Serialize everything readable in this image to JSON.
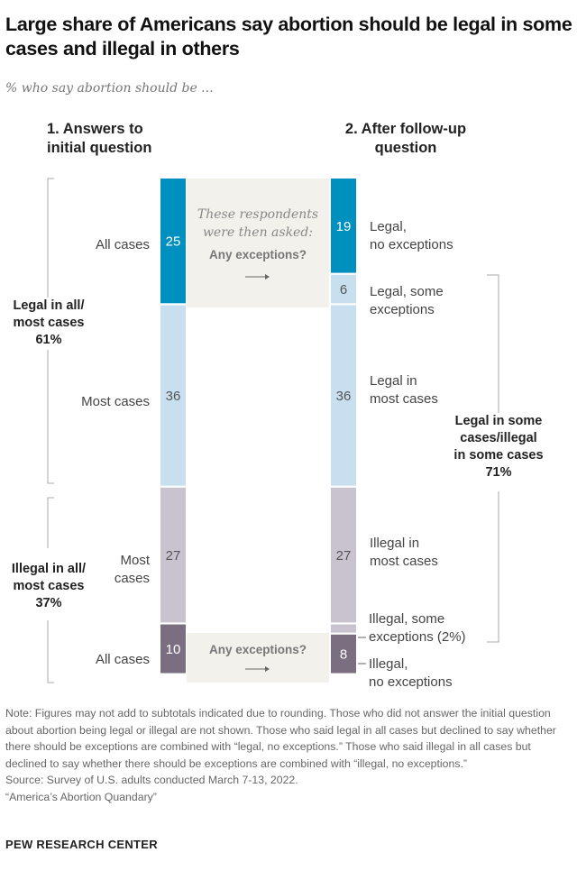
{
  "title": "Large share of Americans say abortion should be legal in some cases and illegal in others",
  "subtitle": "% who say abortion should be ...",
  "chart_data": {
    "type": "bar",
    "subtype": "stacked-column-flow",
    "columns": [
      {
        "header": "1. Answers to initial question",
        "segments": [
          {
            "label": "All cases",
            "value": 25,
            "color": "#0090bf",
            "show_value": true
          },
          {
            "label": "Most cases",
            "value": 36,
            "color": "#c7dfee",
            "show_value": true
          },
          {
            "label": "Most cases",
            "value": 27,
            "color": "#c8c3cf",
            "show_value": true
          },
          {
            "label": "All cases",
            "value": 10,
            "color": "#7b6e80",
            "show_value": true
          }
        ]
      },
      {
        "header": "2. After follow-up question",
        "segments": [
          {
            "label": "Legal, no exceptions",
            "value": 19,
            "color": "#0090bf",
            "show_value": true
          },
          {
            "label": "Legal, some exceptions",
            "value": 6,
            "color": "#c7dfee",
            "show_value": true
          },
          {
            "label": "Legal in most cases",
            "value": 36,
            "color": "#c7dfee",
            "show_value": true
          },
          {
            "label": "Illegal in most cases",
            "value": 27,
            "color": "#c8c3cf",
            "show_value": true
          },
          {
            "label": "Illegal, some exceptions (2%)",
            "value": 2,
            "color": "#c8c3cf",
            "show_value": false
          },
          {
            "label": "Illegal, no exceptions",
            "value": 8,
            "color": "#7b6e80",
            "show_value": true
          }
        ]
      }
    ],
    "groups": [
      {
        "label": "Legal in all/ most cases",
        "value": "61%"
      },
      {
        "label": "Illegal in all/ most cases",
        "value": "37%"
      },
      {
        "label": "Legal in some cases/illegal in some cases",
        "value": "71%"
      }
    ],
    "callouts": {
      "top_question": "These respondents were then asked:",
      "question": "Any exceptions?",
      "box_color": "#f2f1ec"
    }
  },
  "labels": {
    "col1_line1": "1. Answers to",
    "col1_line2": "initial question",
    "col2_line1": "2. After follow-up",
    "col2_line2": "question",
    "l_all1": "All cases",
    "l_most1": "Most cases",
    "l_most2a": "Most",
    "l_most2b": "cases",
    "l_all2": "All cases",
    "r1a": "Legal,",
    "r1b": "no exceptions",
    "r2a": "Legal, some",
    "r2b": "exceptions",
    "r3a": "Legal in",
    "r3b": "most cases",
    "r4a": "Illegal in",
    "r4b": "most cases",
    "r5a": "Illegal, some",
    "r5b": "exceptions (2%)",
    "r6a": "Illegal,",
    "r6b": "no exceptions",
    "g1a": "Legal in all/",
    "g1b": "most cases",
    "g1c": "61%",
    "g2a": "Illegal in all/",
    "g2b": "most cases",
    "g2c": "37%",
    "g3a": "Legal in some",
    "g3b": "cases/illegal",
    "g3c": "in some cases",
    "g3d": "71%",
    "q1a": "These respondents",
    "q1b": "were then asked:",
    "q1c": "Any exceptions?",
    "q2": "Any exceptions?"
  },
  "note": "Note: Figures may not add to subtotals indicated due to rounding. Those who did not answer the initial question about abortion being legal or illegal are not shown. Those who said legal in all cases but declined to say whether there should be exceptions are combined with “legal, no exceptions.” Those who said illegal in all cases but declined to say whether there should be exceptions are combined with “illegal, no exceptions.”",
  "source": "Source: Survey of U.S. adults conducted March 7-13, 2022.",
  "report": "“America’s Abortion Quandary”",
  "brand": "PEW RESEARCH CENTER"
}
